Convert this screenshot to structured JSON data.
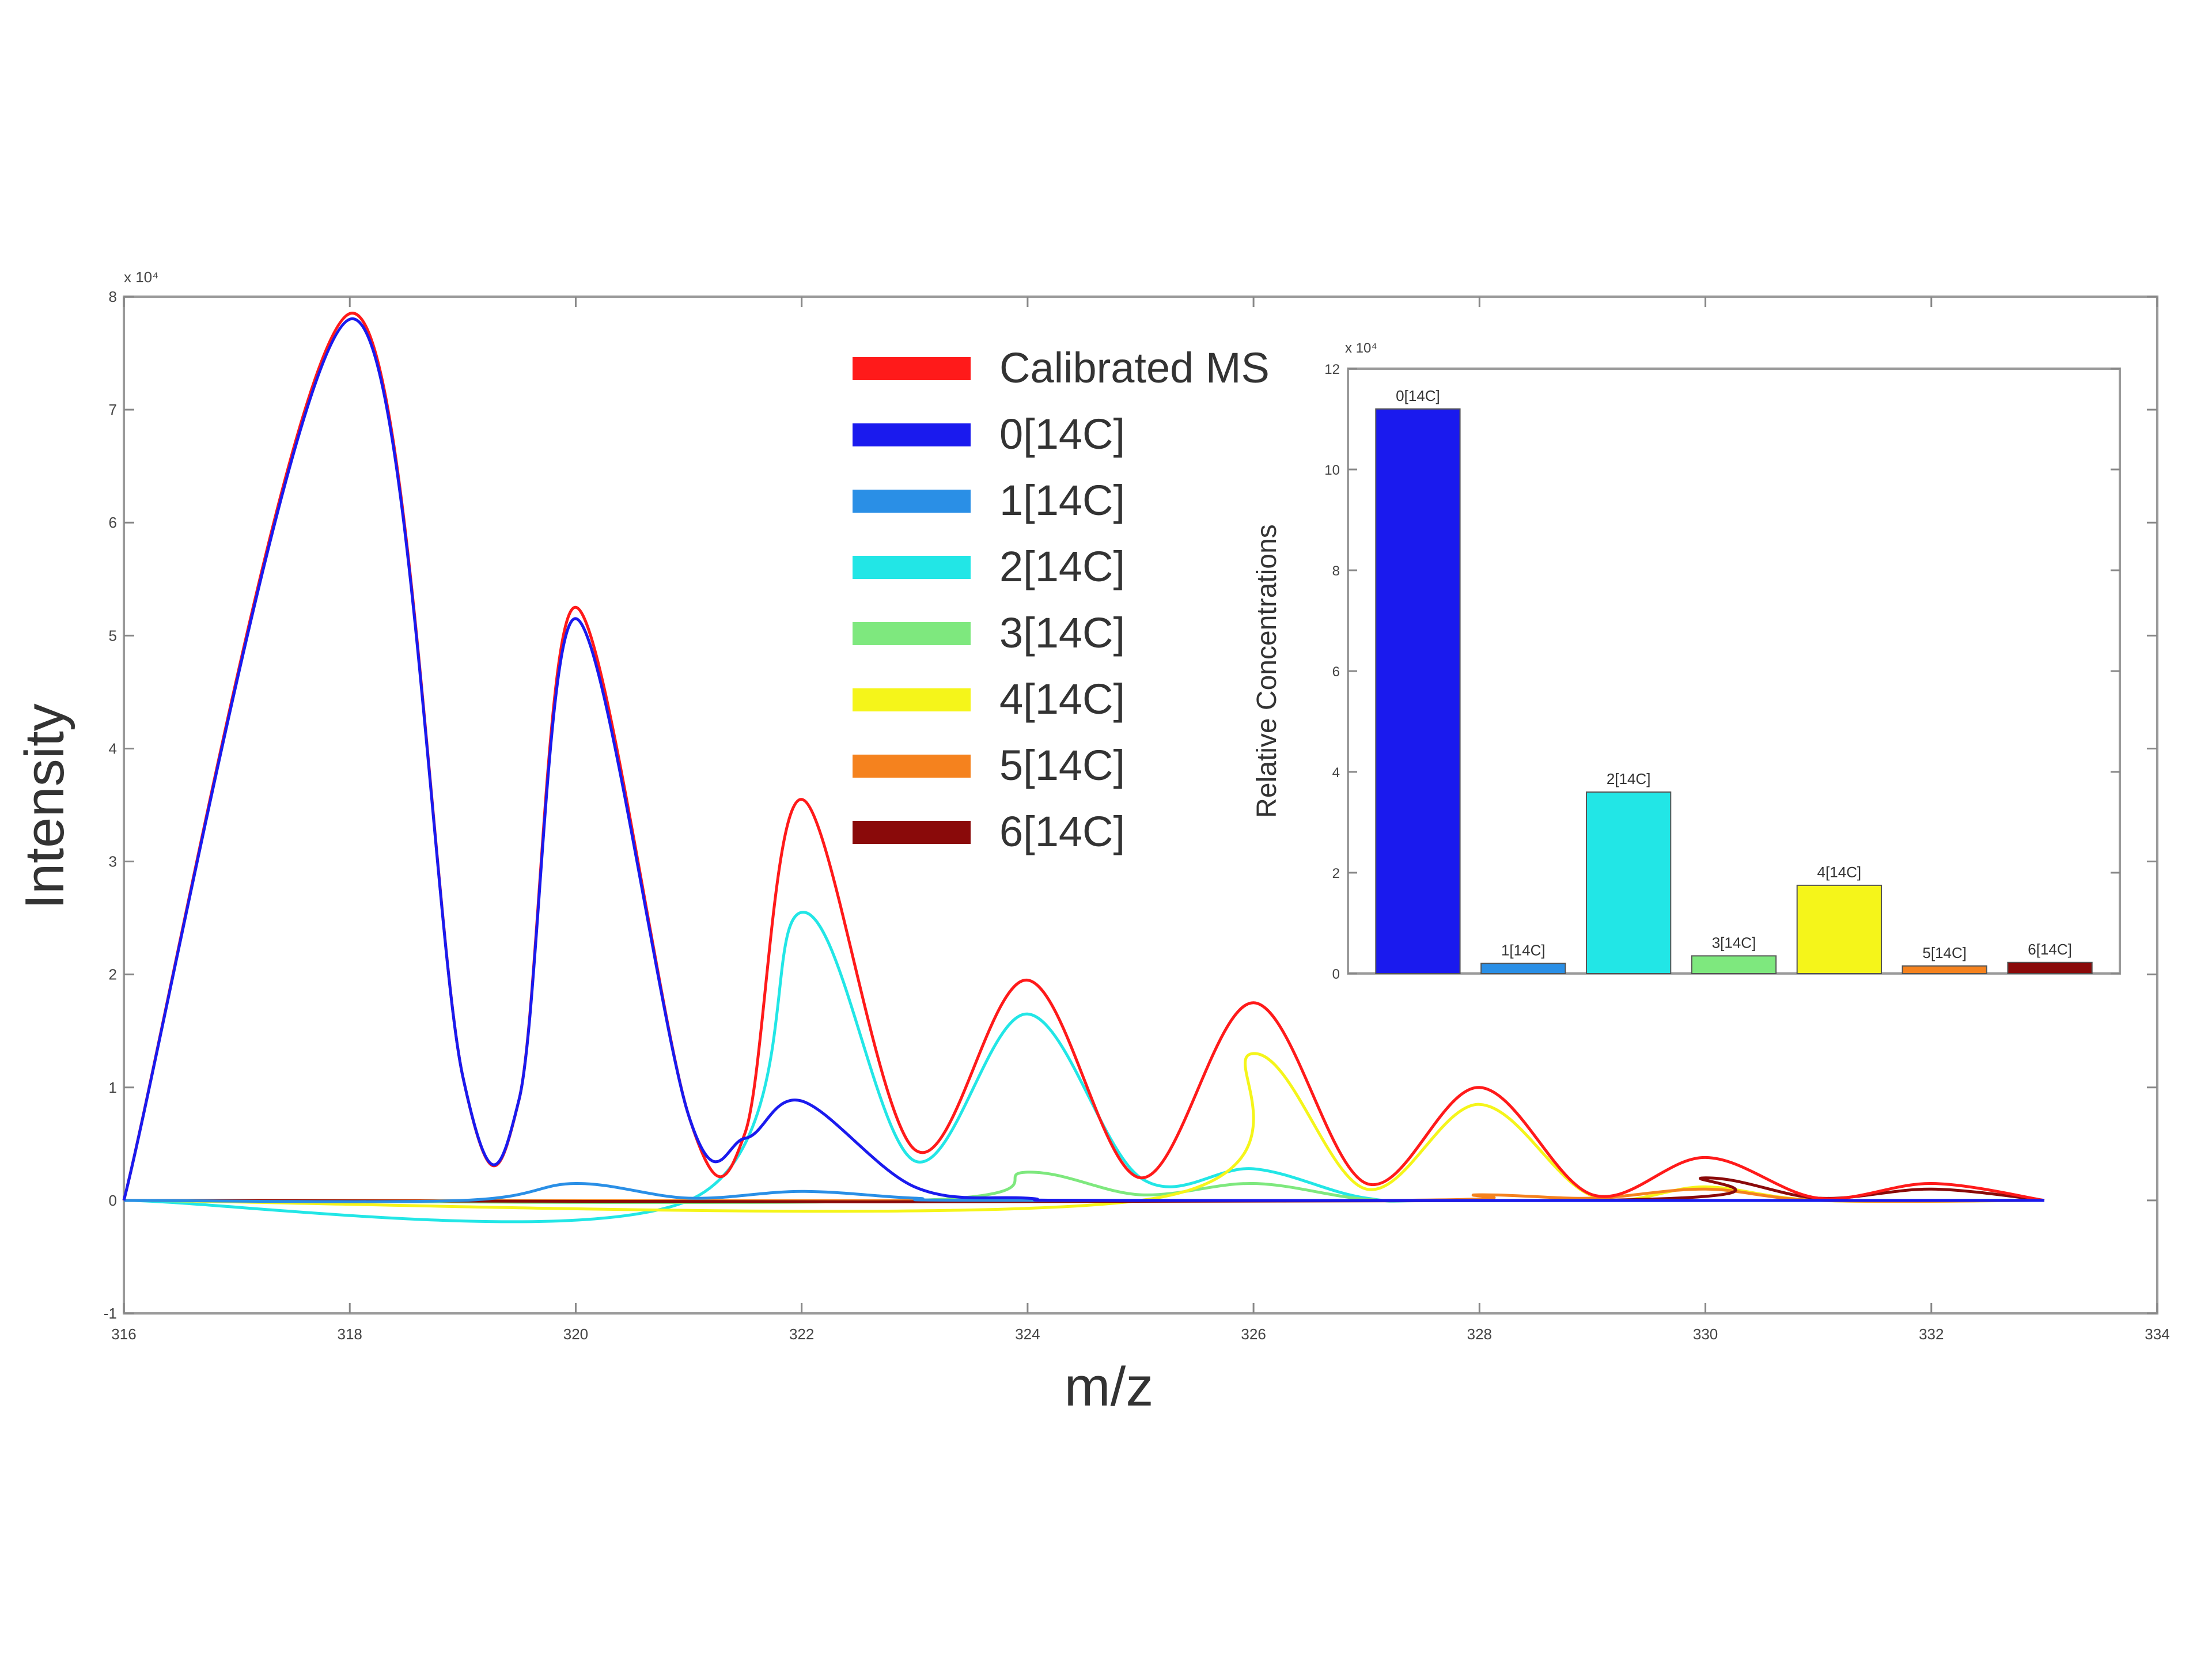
{
  "chart_data": [
    {
      "type": "line",
      "xlabel": "m/z",
      "ylabel": "Intensity",
      "y_exponent_label": "x 10⁴",
      "xlim": [
        316,
        334
      ],
      "ylim": [
        -1,
        8
      ],
      "x_ticks": [
        "316",
        "318",
        "320",
        "322",
        "324",
        "326",
        "328",
        "330",
        "332",
        "334"
      ],
      "y_ticks": [
        "-1",
        "0",
        "1",
        "2",
        "3",
        "4",
        "5",
        "6",
        "7",
        "8"
      ],
      "legend_position": "top-center",
      "series": [
        {
          "name": "Calibrated MS",
          "color": "#ff1a1a",
          "points": [
            [
              316,
              0
            ],
            [
              318,
              7.85
            ],
            [
              319,
              1.1
            ],
            [
              319.5,
              0.9
            ],
            [
              320,
              5.25
            ],
            [
              321,
              0.75
            ],
            [
              321.5,
              0.6
            ],
            [
              322,
              3.55
            ],
            [
              323,
              0.45
            ],
            [
              324,
              1.95
            ],
            [
              325,
              0.2
            ],
            [
              326,
              1.75
            ],
            [
              327,
              0.15
            ],
            [
              328,
              1.0
            ],
            [
              329,
              0.05
            ],
            [
              330,
              0.38
            ],
            [
              331,
              0.02
            ],
            [
              332,
              0.15
            ],
            [
              333,
              0
            ]
          ]
        },
        {
          "name": "0[14C]",
          "color": "#1a1aee",
          "points": [
            [
              316,
              0
            ],
            [
              318,
              7.8
            ],
            [
              319,
              1.1
            ],
            [
              319.5,
              0.9
            ],
            [
              320,
              5.15
            ],
            [
              321,
              0.75
            ],
            [
              321.5,
              0.55
            ],
            [
              322,
              0.88
            ],
            [
              323,
              0.12
            ],
            [
              324,
              0.02
            ],
            [
              325,
              0.0
            ],
            [
              333,
              0
            ]
          ]
        },
        {
          "name": "1[14C]",
          "color": "#2a8fe6",
          "points": [
            [
              316,
              0
            ],
            [
              319,
              0.0
            ],
            [
              320,
              0.15
            ],
            [
              321,
              0.02
            ],
            [
              322,
              0.08
            ],
            [
              323,
              0.02
            ],
            [
              324,
              0.0
            ],
            [
              333,
              0
            ]
          ]
        },
        {
          "name": "2[14C]",
          "color": "#22e6e6",
          "points": [
            [
              316,
              0
            ],
            [
              321,
              0.0
            ],
            [
              322,
              2.55
            ],
            [
              323,
              0.35
            ],
            [
              324,
              1.65
            ],
            [
              325,
              0.2
            ],
            [
              326,
              0.28
            ],
            [
              327,
              0.02
            ],
            [
              328,
              0.0
            ],
            [
              333,
              0
            ]
          ]
        },
        {
          "name": "3[14C]",
          "color": "#7ee87e",
          "points": [
            [
              316,
              0
            ],
            [
              323,
              0.0
            ],
            [
              324,
              0.25
            ],
            [
              325,
              0.05
            ],
            [
              326,
              0.15
            ],
            [
              327,
              0.01
            ],
            [
              328,
              0.0
            ],
            [
              333,
              0
            ]
          ]
        },
        {
          "name": "4[14C]",
          "color": "#f5f51a",
          "points": [
            [
              316,
              0
            ],
            [
              325,
              0.0
            ],
            [
              326,
              1.3
            ],
            [
              327,
              0.1
            ],
            [
              328,
              0.85
            ],
            [
              329,
              0.04
            ],
            [
              330,
              0.12
            ],
            [
              331,
              0.0
            ],
            [
              333,
              0
            ]
          ]
        },
        {
          "name": "5[14C]",
          "color": "#f5821e",
          "points": [
            [
              316,
              0
            ],
            [
              327,
              0.0
            ],
            [
              328,
              0.05
            ],
            [
              329,
              0.02
            ],
            [
              330,
              0.1
            ],
            [
              331,
              0.0
            ],
            [
              333,
              0
            ]
          ]
        },
        {
          "name": "6[14C]",
          "color": "#8a0a0a",
          "points": [
            [
              316,
              0
            ],
            [
              329,
              0.0
            ],
            [
              330,
              0.2
            ],
            [
              331,
              0.02
            ],
            [
              332,
              0.1
            ],
            [
              333,
              0
            ]
          ]
        }
      ]
    },
    {
      "type": "bar",
      "ylabel": "Relative Concentrations",
      "y_exponent_label": "x 10⁴",
      "ylim": [
        0,
        12
      ],
      "y_ticks": [
        "0",
        "2",
        "4",
        "6",
        "8",
        "10",
        "12"
      ],
      "categories": [
        "0[14C]",
        "1[14C]",
        "2[14C]",
        "3[14C]",
        "4[14C]",
        "5[14C]",
        "6[14C]"
      ],
      "values": [
        11.2,
        0.2,
        3.6,
        0.35,
        1.75,
        0.15,
        0.22
      ],
      "colors": [
        "#1a1aee",
        "#2a8fe6",
        "#22e6e6",
        "#7ee87e",
        "#f5f51a",
        "#f5821e",
        "#8a0a0a"
      ]
    }
  ]
}
